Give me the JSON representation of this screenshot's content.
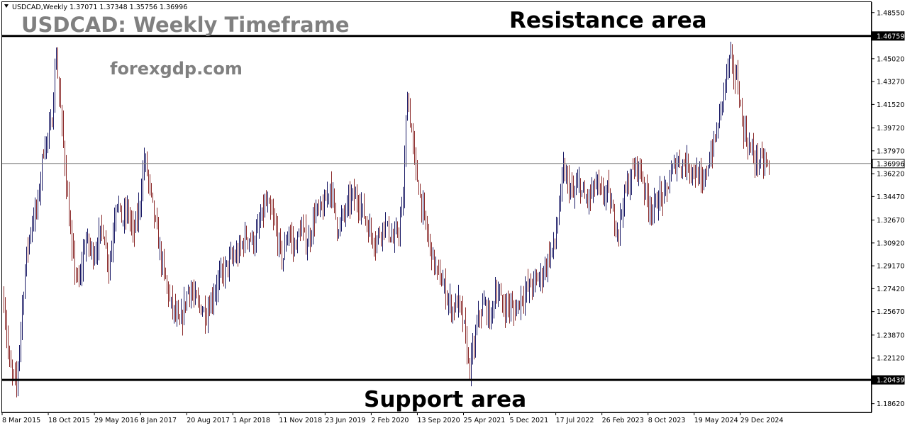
{
  "header": {
    "symbol_info": "USDCAD,Weekly  1.37071 1.37348 1.35756 1.36996",
    "collapse_icon": "triangle-down-icon"
  },
  "overlay": {
    "title": "USDCAD: Weekly Timeframe",
    "website": "forexgdp.com",
    "resistance_label": "Resistance area",
    "support_label": "Support area"
  },
  "chart_data": {
    "type": "bar",
    "style": "ohlc-bars",
    "instrument": "USDCAD",
    "timeframe": "Weekly",
    "last_ohlc": {
      "open": 1.37071,
      "high": 1.37348,
      "low": 1.35756,
      "close": 1.36996
    },
    "current_price": 1.36996,
    "ylim": [
      1.1795,
      1.4935
    ],
    "y_ticks": [
      "1.48550",
      "1.45020",
      "1.43270",
      "1.41520",
      "1.39720",
      "1.37970",
      "1.36220",
      "1.34470",
      "1.32670",
      "1.30920",
      "1.29170",
      "1.27420",
      "1.25670",
      "1.23870",
      "1.22120",
      "1.18620"
    ],
    "x_ticks": [
      "8 Mar 2015",
      "18 Oct 2015",
      "29 May 2016",
      "8 Jan 2017",
      "20 Aug 2017",
      "1 Apr 2018",
      "11 Nov 2018",
      "23 Jun 2019",
      "2 Feb 2020",
      "13 Sep 2020",
      "25 Apr 2021",
      "5 Dec 2021",
      "17 Jul 2022",
      "26 Feb 2023",
      "8 Oct 2023",
      "19 May 2024",
      "29 Dec 2024"
    ],
    "levels": [
      {
        "name": "Resistance area",
        "value": 1.46759
      },
      {
        "name": "Support area",
        "value": 1.20439
      },
      {
        "name": "Current price",
        "value": 1.36996
      }
    ],
    "series": [
      {
        "values": [
          [
            0.0,
            1.265
          ],
          [
            0.02,
            1.215
          ],
          [
            0.045,
            1.2
          ],
          [
            0.06,
            1.245
          ],
          [
            0.08,
            1.3
          ],
          [
            0.1,
            1.325
          ],
          [
            0.12,
            1.338
          ],
          [
            0.14,
            1.38
          ],
          [
            0.17,
            1.4
          ],
          [
            0.185,
            1.455
          ],
          [
            0.2,
            1.415
          ],
          [
            0.215,
            1.375
          ],
          [
            0.24,
            1.305
          ],
          [
            0.265,
            1.275
          ],
          [
            0.29,
            1.312
          ],
          [
            0.32,
            1.3
          ],
          [
            0.35,
            1.322
          ],
          [
            0.375,
            1.29
          ],
          [
            0.4,
            1.345
          ],
          [
            0.42,
            1.325
          ],
          [
            0.44,
            1.335
          ],
          [
            0.46,
            1.315
          ],
          [
            0.48,
            1.335
          ],
          [
            0.5,
            1.375
          ],
          [
            0.515,
            1.355
          ],
          [
            0.53,
            1.335
          ],
          [
            0.56,
            1.295
          ],
          [
            0.59,
            1.265
          ],
          [
            0.625,
            1.245
          ],
          [
            0.655,
            1.275
          ],
          [
            0.69,
            1.262
          ],
          [
            0.72,
            1.255
          ],
          [
            0.76,
            1.28
          ],
          [
            0.8,
            1.295
          ],
          [
            0.83,
            1.3
          ],
          [
            0.86,
            1.315
          ],
          [
            0.89,
            1.31
          ],
          [
            0.91,
            1.325
          ],
          [
            0.93,
            1.34
          ],
          [
            0.96,
            1.325
          ],
          [
            0.99,
            1.295
          ],
          [
            1.01,
            1.32
          ],
          [
            1.03,
            1.305
          ],
          [
            1.055,
            1.32
          ],
          [
            1.08,
            1.308
          ],
          [
            1.105,
            1.332
          ],
          [
            1.135,
            1.335
          ],
          [
            1.16,
            1.355
          ],
          [
            1.185,
            1.32
          ],
          [
            1.21,
            1.332
          ],
          [
            1.235,
            1.345
          ],
          [
            1.265,
            1.34
          ],
          [
            1.295,
            1.32
          ],
          [
            1.32,
            1.31
          ],
          [
            1.35,
            1.325
          ],
          [
            1.38,
            1.31
          ],
          [
            1.4,
            1.32
          ],
          [
            1.415,
            1.34
          ],
          [
            1.43,
            1.425
          ],
          [
            1.445,
            1.395
          ],
          [
            1.46,
            1.365
          ],
          [
            1.48,
            1.34
          ],
          [
            1.505,
            1.312
          ],
          [
            1.53,
            1.29
          ],
          [
            1.56,
            1.275
          ],
          [
            1.59,
            1.258
          ],
          [
            1.61,
            1.265
          ],
          [
            1.63,
            1.248
          ],
          [
            1.65,
            1.212
          ],
          [
            1.665,
            1.228
          ],
          [
            1.685,
            1.255
          ],
          [
            1.705,
            1.262
          ],
          [
            1.725,
            1.25
          ],
          [
            1.745,
            1.275
          ],
          [
            1.77,
            1.26
          ],
          [
            1.79,
            1.262
          ],
          [
            1.81,
            1.256
          ],
          [
            1.835,
            1.268
          ],
          [
            1.86,
            1.275
          ],
          [
            1.885,
            1.28
          ],
          [
            1.91,
            1.285
          ],
          [
            1.935,
            1.3
          ],
          [
            1.955,
            1.31
          ],
          [
            1.97,
            1.338
          ],
          [
            1.985,
            1.365
          ],
          [
            2.0,
            1.355
          ],
          [
            2.02,
            1.345
          ],
          [
            2.04,
            1.355
          ],
          [
            2.06,
            1.342
          ],
          [
            2.08,
            1.345
          ],
          [
            2.1,
            1.355
          ],
          [
            2.12,
            1.345
          ],
          [
            2.14,
            1.35
          ],
          [
            2.16,
            1.33
          ],
          [
            2.18,
            1.32
          ],
          [
            2.2,
            1.345
          ],
          [
            2.225,
            1.36
          ],
          [
            2.245,
            1.37
          ],
          [
            2.265,
            1.36
          ],
          [
            2.285,
            1.34
          ],
          [
            2.305,
            1.335
          ],
          [
            2.325,
            1.345
          ],
          [
            2.345,
            1.345
          ],
          [
            2.365,
            1.36
          ],
          [
            2.385,
            1.372
          ],
          [
            2.405,
            1.37
          ],
          [
            2.425,
            1.37
          ],
          [
            2.445,
            1.365
          ],
          [
            2.465,
            1.36
          ],
          [
            2.48,
            1.35
          ],
          [
            2.495,
            1.368
          ],
          [
            2.515,
            1.382
          ],
          [
            2.53,
            1.395
          ],
          [
            2.545,
            1.415
          ],
          [
            2.56,
            1.435
          ],
          [
            2.575,
            1.45
          ],
          [
            2.59,
            1.44
          ],
          [
            2.605,
            1.43
          ],
          [
            2.62,
            1.4
          ],
          [
            2.64,
            1.385
          ],
          [
            2.66,
            1.375
          ],
          [
            2.68,
            1.372
          ],
          [
            2.7,
            1.37
          ],
          [
            2.715,
            1.368
          ]
        ]
      }
    ]
  }
}
